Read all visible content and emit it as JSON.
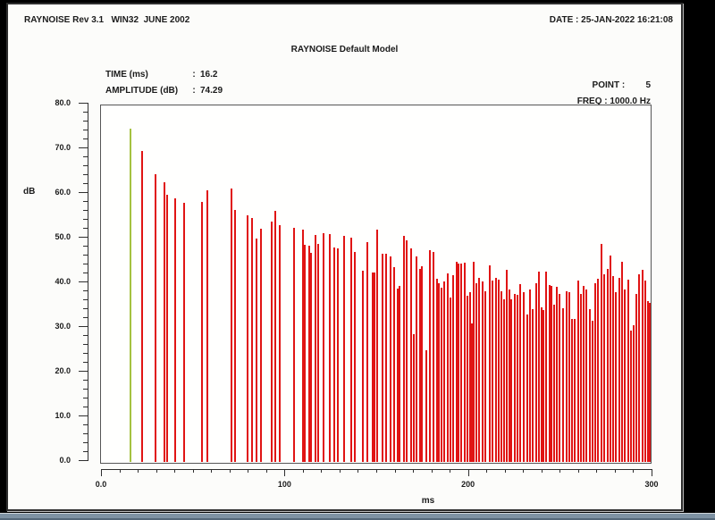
{
  "window": {
    "header_left": "RAYNOISE Rev 3.1   WIN32  JUNE 2002",
    "header_right": "DATE : 25-JAN-2022 16:21:08",
    "title": "RAYNOISE Default Model"
  },
  "info": {
    "time_label": "TIME (ms)",
    "time_value": "16.2",
    "amplitude_label": "AMPLITUDE (dB)",
    "amplitude_value": "74.29",
    "point_label": "POINT",
    "point_value": "5",
    "freq_label": "FREQ",
    "freq_value": "1000.0 Hz",
    "separator": ":"
  },
  "colors": {
    "direct_sound": "#a5c240",
    "reflection": "#e01414",
    "axis": "#2f2f2f",
    "text": "#1b1b1b",
    "page": "#fcfcfa",
    "bottom_strip": "#7e92a3"
  },
  "chart_data": {
    "type": "bar",
    "title": "RAYNOISE Default Model",
    "xlabel": "ms",
    "ylabel": "dB",
    "xlim": [
      0,
      300
    ],
    "ylim": [
      0,
      80
    ],
    "grid": false,
    "x_ticks": [
      {
        "value": 0,
        "label": "0.0"
      },
      {
        "value": 100,
        "label": "100"
      },
      {
        "value": 200,
        "label": "200"
      },
      {
        "value": 300,
        "label": "300"
      }
    ],
    "x_minor_step": 10,
    "y_ticks": [
      {
        "value": 80,
        "label": "80.0"
      },
      {
        "value": 70,
        "label": "70.0"
      },
      {
        "value": 60,
        "label": "60.0"
      },
      {
        "value": 50,
        "label": "50.0"
      },
      {
        "value": 40,
        "label": "40.0"
      },
      {
        "value": 30,
        "label": "30.0"
      },
      {
        "value": 20,
        "label": "20.0"
      },
      {
        "value": 10,
        "label": "10.0"
      },
      {
        "value": 0,
        "label": "0.0"
      }
    ],
    "y_minor_step": 2,
    "direct_sound": {
      "time_ms": 16.2,
      "amplitude_db": 74.29
    },
    "spikes": [
      [
        16.2,
        74.29
      ],
      [
        22.5,
        69.2
      ],
      [
        29.8,
        64.0
      ],
      [
        34.6,
        62.3
      ],
      [
        35.8,
        59.5
      ],
      [
        40.5,
        58.6
      ],
      [
        45.4,
        57.6
      ],
      [
        55.1,
        57.9
      ],
      [
        58.0,
        60.4
      ],
      [
        71.2,
        60.8
      ],
      [
        73.2,
        56.0
      ],
      [
        80.0,
        54.9
      ],
      [
        82.4,
        54.3
      ],
      [
        84.9,
        49.6
      ],
      [
        87.3,
        51.8
      ],
      [
        93.2,
        53.4
      ],
      [
        95.0,
        55.8
      ],
      [
        97.5,
        52.6
      ],
      [
        105.0,
        52.1
      ],
      [
        110.2,
        51.7
      ],
      [
        111.2,
        48.2
      ],
      [
        113.7,
        48.1
      ],
      [
        114.6,
        46.5
      ],
      [
        117.1,
        50.5
      ],
      [
        118.4,
        48.4
      ],
      [
        121.1,
        50.9
      ],
      [
        124.5,
        50.7
      ],
      [
        127.0,
        47.7
      ],
      [
        129.0,
        47.4
      ],
      [
        132.3,
        50.2
      ],
      [
        136.3,
        49.8
      ],
      [
        138.4,
        46.7
      ],
      [
        142.6,
        42.4
      ],
      [
        145.2,
        48.9
      ],
      [
        148.2,
        42.0
      ],
      [
        149.1,
        42.0
      ],
      [
        150.6,
        51.7
      ],
      [
        153.3,
        46.2
      ],
      [
        155.3,
        46.2
      ],
      [
        157.9,
        45.7
      ],
      [
        159.5,
        43.2
      ],
      [
        161.6,
        38.4
      ],
      [
        162.8,
        39.1
      ],
      [
        165.2,
        50.2
      ],
      [
        166.8,
        49.2
      ],
      [
        168.9,
        47.5
      ],
      [
        170.6,
        28.3
      ],
      [
        172.0,
        45.7
      ],
      [
        173.8,
        42.9
      ],
      [
        175.0,
        43.5
      ],
      [
        177.4,
        24.6
      ],
      [
        179.0,
        47.0
      ],
      [
        181.1,
        46.7
      ],
      [
        183.1,
        40.6
      ],
      [
        184.2,
        39.6
      ],
      [
        185.5,
        38.6
      ],
      [
        187.2,
        40.1
      ],
      [
        189.1,
        41.9
      ],
      [
        190.4,
        36.4
      ],
      [
        191.7,
        41.5
      ],
      [
        193.7,
        44.5
      ],
      [
        195.0,
        44.1
      ],
      [
        196.1,
        44.1
      ],
      [
        198.2,
        44.2
      ],
      [
        199.8,
        36.9
      ],
      [
        200.9,
        37.7
      ],
      [
        202.1,
        30.6
      ],
      [
        202.9,
        44.5
      ],
      [
        204.5,
        39.6
      ],
      [
        206.2,
        40.9
      ],
      [
        207.8,
        40.1
      ],
      [
        209.4,
        37.8
      ],
      [
        211.8,
        43.6
      ],
      [
        213.1,
        40.2
      ],
      [
        215.1,
        40.9
      ],
      [
        216.7,
        40.4
      ],
      [
        218.3,
        37.9
      ],
      [
        219.6,
        36.1
      ],
      [
        221.2,
        42.6
      ],
      [
        222.4,
        38.2
      ],
      [
        223.7,
        36.1
      ],
      [
        225.3,
        37.2
      ],
      [
        226.9,
        37.0
      ],
      [
        228.5,
        39.4
      ],
      [
        230.5,
        37.7
      ],
      [
        232.1,
        32.6
      ],
      [
        233.7,
        38.2
      ],
      [
        235.3,
        33.9
      ],
      [
        237.0,
        39.6
      ],
      [
        238.6,
        42.2
      ],
      [
        239.9,
        34.2
      ],
      [
        241.0,
        33.6
      ],
      [
        242.7,
        42.2
      ],
      [
        244.3,
        39.2
      ],
      [
        245.6,
        39.0
      ],
      [
        246.7,
        34.9
      ],
      [
        248.3,
        38.8
      ],
      [
        250.0,
        37.2
      ],
      [
        251.6,
        34.1
      ],
      [
        253.5,
        37.9
      ],
      [
        255.2,
        37.6
      ],
      [
        256.8,
        31.6
      ],
      [
        258.1,
        31.6
      ],
      [
        260.0,
        40.2
      ],
      [
        261.6,
        37.2
      ],
      [
        263.2,
        39.1
      ],
      [
        264.5,
        38.2
      ],
      [
        266.2,
        33.9
      ],
      [
        267.8,
        31.3
      ],
      [
        269.4,
        39.6
      ],
      [
        270.7,
        40.6
      ],
      [
        272.6,
        48.4
      ],
      [
        274.3,
        41.6
      ],
      [
        275.9,
        42.9
      ],
      [
        277.5,
        45.9
      ],
      [
        279.1,
        41.2
      ],
      [
        280.7,
        37.6
      ],
      [
        282.3,
        40.9
      ],
      [
        284.0,
        44.5
      ],
      [
        285.6,
        38.2
      ],
      [
        287.2,
        40.4
      ],
      [
        288.8,
        29.0
      ],
      [
        290.1,
        30.3
      ],
      [
        291.7,
        37.2
      ],
      [
        293.3,
        41.6
      ],
      [
        295.0,
        42.6
      ],
      [
        296.6,
        40.2
      ],
      [
        298.2,
        35.6
      ],
      [
        298.9,
        35.3
      ]
    ]
  }
}
